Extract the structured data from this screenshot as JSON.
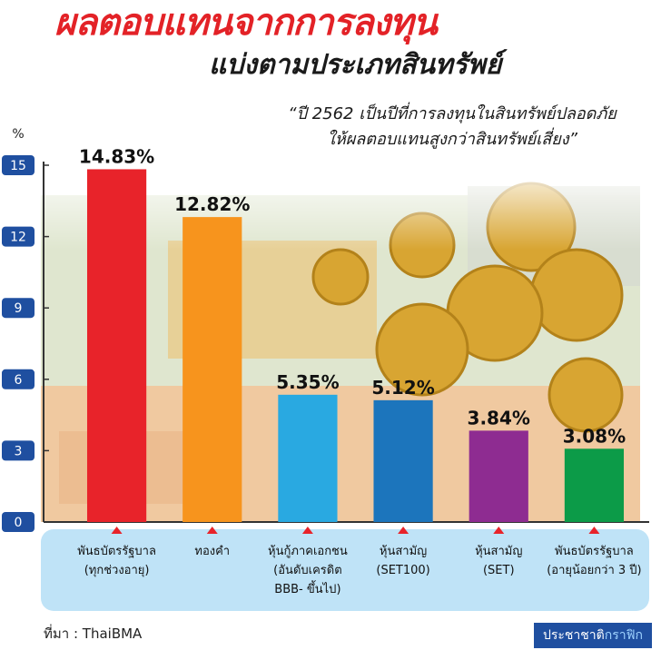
{
  "header": {
    "title": "ผลตอบแทนจากการลงทุน",
    "subtitle": "แบ่งตามประเภทสินทรัพย์",
    "quote_line1": "“ปี 2562 เป็นปีที่การลงทุนในสินทรัพย์ปลอดภัย",
    "quote_line2": "ให้ผลตอบแทนสูงกว่าสินทรัพย์เสี่ยง”"
  },
  "chart_data": {
    "type": "bar",
    "ylabel": "%",
    "ylim": [
      0,
      15
    ],
    "yticks": [
      "0",
      "3",
      "6",
      "9",
      "12",
      "15"
    ],
    "grid": false,
    "categories": [
      [
        "พันธบัตรรัฐบาล",
        "(ทุกช่วงอายุ)"
      ],
      [
        "ทองคำ"
      ],
      [
        "หุ้นกู้ภาคเอกชน",
        "(อันดับเครดิต",
        "BBB- ขึ้นไป)"
      ],
      [
        "หุ้นสามัญ",
        "(SET100)"
      ],
      [
        "หุ้นสามัญ",
        "(SET)"
      ],
      [
        "พันธบัตรรัฐบาล",
        "(อายุน้อยกว่า 3 ปี)"
      ]
    ],
    "values": [
      14.83,
      12.82,
      5.35,
      5.12,
      3.84,
      3.08
    ],
    "value_labels": [
      "14.83%",
      "12.82%",
      "5.35%",
      "5.12%",
      "3.84%",
      "3.08%"
    ],
    "colors": [
      "#e8232a",
      "#f7941d",
      "#29a9e1",
      "#1c75bc",
      "#8e2c91",
      "#0c9b48"
    ]
  },
  "footer": {
    "source": "ที่มา : ThaiBMA",
    "brand_a": "ประชาชาติ",
    "brand_b": "กราฟิก"
  },
  "colors": {
    "title": "#e32227",
    "axis_badge": "#1f4fa0",
    "label_band": "#bfe3f7",
    "marker": "#e8232a"
  }
}
